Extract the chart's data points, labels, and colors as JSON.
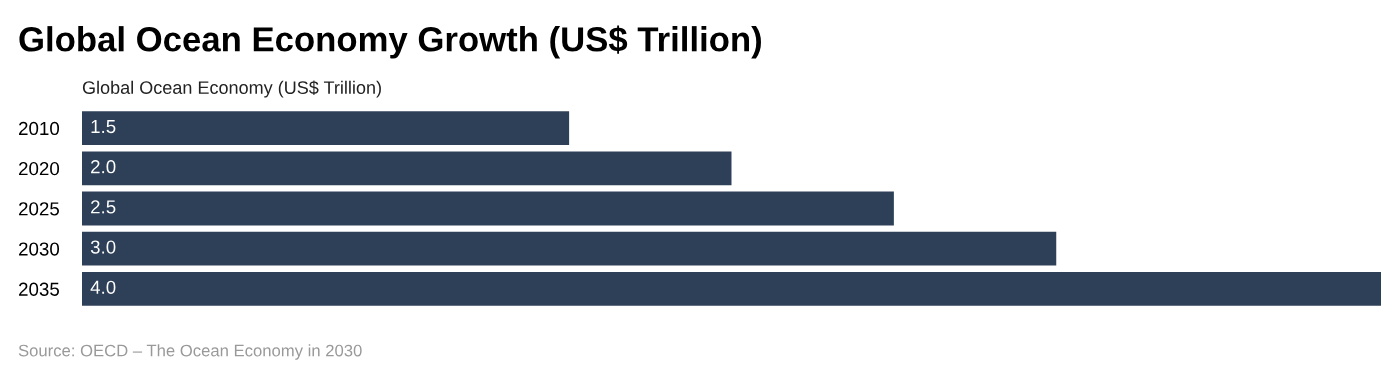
{
  "chart_data": {
    "type": "bar",
    "orientation": "horizontal",
    "title": "Global Ocean Economy Growth (US$ Trillion)",
    "categories": [
      "2010",
      "2020",
      "2025",
      "2030",
      "2035"
    ],
    "series": [
      {
        "name": "Global Ocean Economy (US$ Trillion)",
        "color": "#2e4058",
        "values": [
          1.5,
          2.0,
          2.5,
          3.0,
          4.0
        ],
        "value_labels": [
          "1.5",
          "2.0",
          "2.5",
          "3.0",
          "4.0"
        ]
      }
    ],
    "xlim": [
      0,
      4
    ],
    "tick_labels": "y",
    "grid": false,
    "legend": false,
    "annotations": [
      "Source: OECD – The Ocean Economy in 2030"
    ]
  }
}
